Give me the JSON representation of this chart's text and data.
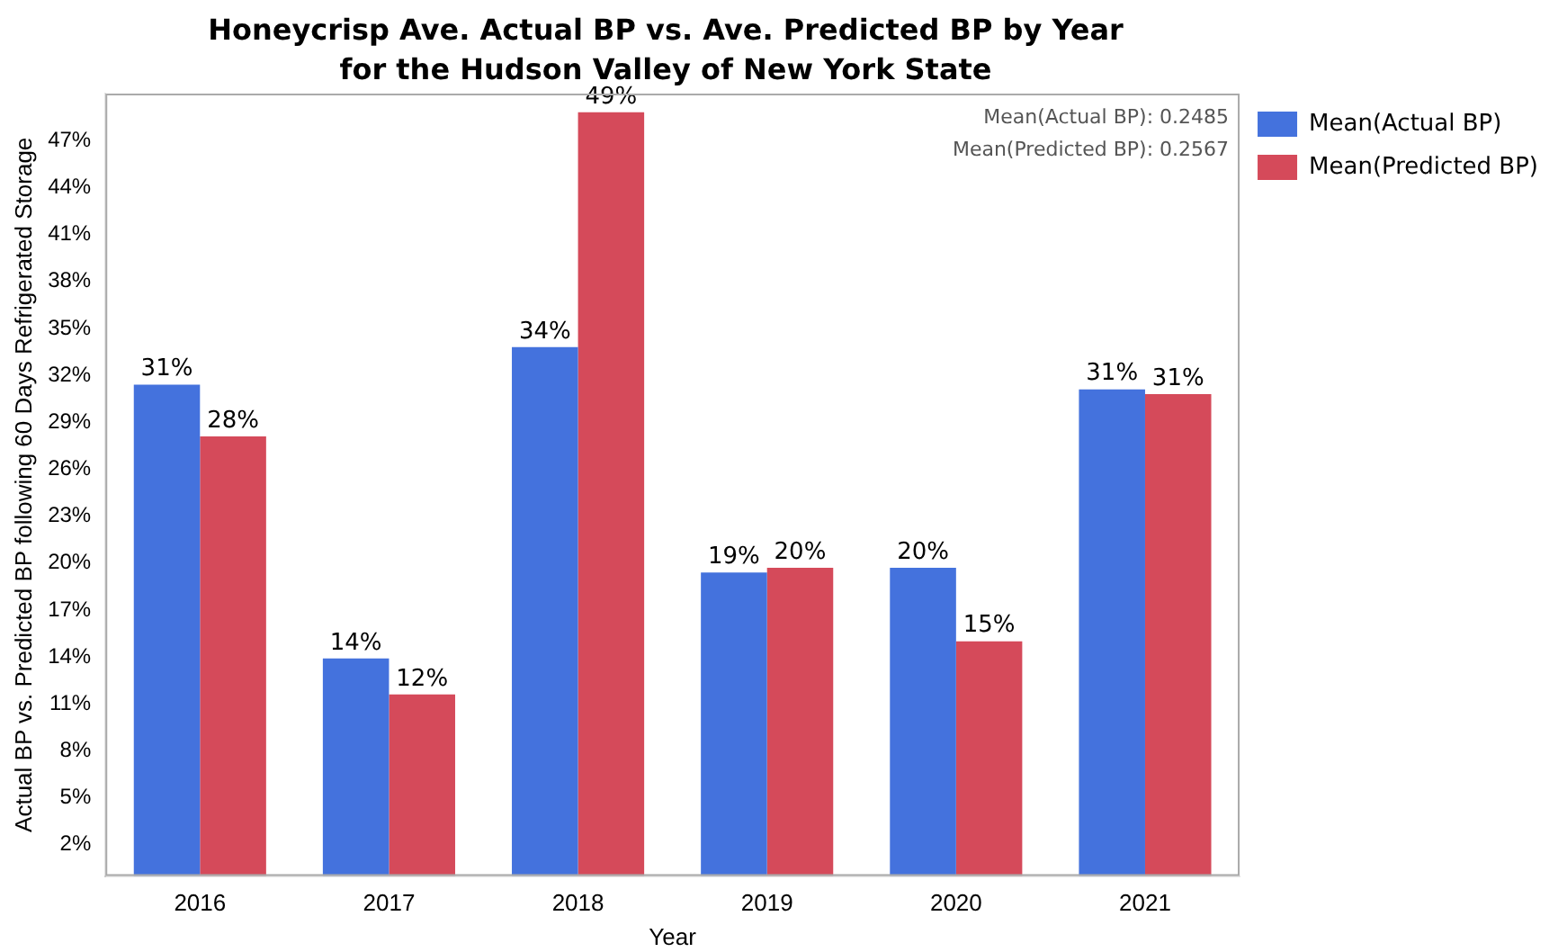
{
  "chart_data": {
    "type": "bar",
    "title": "Honeycrisp Ave. Actual BP vs. Ave. Predicted BP by Year for the Hudson Valley of New York State",
    "xlabel": "Year",
    "ylabel": "Actual BP vs. Predicted BP following 60 Days Refrigerated Storage",
    "categories": [
      "2016",
      "2017",
      "2018",
      "2019",
      "2020",
      "2021"
    ],
    "series": [
      {
        "name": "Mean(Actual BP)",
        "color": "#4472dd",
        "values": [
          31.4,
          13.9,
          33.8,
          19.4,
          19.7,
          31.1
        ],
        "value_labels": [
          "31%",
          "14%",
          "34%",
          "19%",
          "20%",
          "31%"
        ]
      },
      {
        "name": "Mean(Predicted BP)",
        "color": "#d54a5a",
        "values": [
          28.1,
          11.6,
          48.8,
          19.7,
          15.0,
          30.8
        ],
        "value_labels": [
          "28%",
          "12%",
          "49%",
          "20%",
          "15%",
          "31%"
        ]
      }
    ],
    "ylim": [
      0,
      50
    ],
    "yticks": [
      {
        "value": 2,
        "label": "2%"
      },
      {
        "value": 5,
        "label": "5%"
      },
      {
        "value": 8,
        "label": "8%"
      },
      {
        "value": 11,
        "label": "11%"
      },
      {
        "value": 14,
        "label": "14%"
      },
      {
        "value": 17,
        "label": "17%"
      },
      {
        "value": 20,
        "label": "20%"
      },
      {
        "value": 23,
        "label": "23%"
      },
      {
        "value": 26,
        "label": "26%"
      },
      {
        "value": 29,
        "label": "29%"
      },
      {
        "value": 32,
        "label": "32%"
      },
      {
        "value": 35,
        "label": "35%"
      },
      {
        "value": 38,
        "label": "38%"
      },
      {
        "value": 41,
        "label": "41%"
      },
      {
        "value": 44,
        "label": "44%"
      },
      {
        "value": 47,
        "label": "47%"
      }
    ],
    "annotations": [
      "Mean(Actual BP): 0.2485",
      "Mean(Predicted BP): 0.2567"
    ],
    "grid": false,
    "legend": "top right"
  }
}
